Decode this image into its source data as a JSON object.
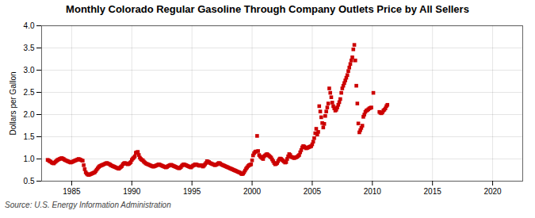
{
  "chart_data": {
    "type": "scatter",
    "title": "Monthly Colorado Regular Gasoline Through Company Outlets Price by All Sellers",
    "ylabel": "Dollars per Gallon",
    "source": "Source: U.S. Energy Information Administration",
    "color": "#cc0000",
    "marker": "square",
    "grid": true,
    "xlim": [
      1982.5,
      2022.5
    ],
    "ylim": [
      0.5,
      4.0
    ],
    "xticks": [
      1985,
      1990,
      1995,
      2000,
      2005,
      2010,
      2015,
      2020
    ],
    "yticks": [
      0.5,
      {
        "value": 1.0,
        "label": "1.0"
      },
      1.5,
      {
        "value": 2.0,
        "label": "2.0"
      },
      2.5,
      {
        "value": 3.0,
        "label": "3.0"
      },
      3.5,
      {
        "value": 4.0,
        "label": "4.0"
      }
    ],
    "x": [
      1983.0,
      1983.083,
      1983.167,
      1983.25,
      1983.333,
      1983.417,
      1983.5,
      1983.583,
      1983.667,
      1983.75,
      1983.833,
      1983.917,
      1984.0,
      1984.083,
      1984.167,
      1984.25,
      1984.333,
      1984.417,
      1984.5,
      1984.583,
      1984.667,
      1984.75,
      1984.833,
      1984.917,
      1985.0,
      1985.083,
      1985.167,
      1985.25,
      1985.333,
      1985.417,
      1985.5,
      1985.583,
      1985.667,
      1985.75,
      1985.833,
      1985.917,
      1986.0,
      1986.083,
      1986.167,
      1986.25,
      1986.333,
      1986.417,
      1986.5,
      1986.583,
      1986.667,
      1986.75,
      1986.833,
      1986.917,
      1987.0,
      1987.083,
      1987.167,
      1987.25,
      1987.333,
      1987.417,
      1987.5,
      1987.583,
      1987.667,
      1987.75,
      1987.833,
      1987.917,
      1988.0,
      1988.083,
      1988.167,
      1988.25,
      1988.333,
      1988.417,
      1988.5,
      1988.583,
      1988.667,
      1988.75,
      1988.833,
      1988.917,
      1989.0,
      1989.083,
      1989.167,
      1989.25,
      1989.333,
      1989.417,
      1989.5,
      1989.583,
      1989.667,
      1989.75,
      1989.833,
      1989.917,
      1990.0,
      1990.083,
      1990.167,
      1990.25,
      1990.333,
      1990.417,
      1990.5,
      1990.583,
      1990.667,
      1990.75,
      1990.833,
      1990.917,
      1991.0,
      1991.083,
      1991.167,
      1991.25,
      1991.333,
      1991.417,
      1991.5,
      1991.583,
      1991.667,
      1991.75,
      1991.833,
      1991.917,
      1992.0,
      1992.083,
      1992.167,
      1992.25,
      1992.333,
      1992.417,
      1992.5,
      1992.583,
      1992.667,
      1992.75,
      1992.833,
      1992.917,
      1993.0,
      1993.083,
      1993.167,
      1993.25,
      1993.333,
      1993.417,
      1993.5,
      1993.583,
      1993.667,
      1993.75,
      1993.833,
      1993.917,
      1994.0,
      1994.083,
      1994.167,
      1994.25,
      1994.333,
      1994.417,
      1994.5,
      1994.583,
      1994.667,
      1994.75,
      1994.833,
      1994.917,
      1995.0,
      1995.083,
      1995.167,
      1995.25,
      1995.333,
      1995.417,
      1995.5,
      1995.583,
      1995.667,
      1995.75,
      1995.833,
      1995.917,
      1996.0,
      1996.083,
      1996.167,
      1996.25,
      1996.333,
      1996.417,
      1996.5,
      1996.583,
      1996.667,
      1996.75,
      1996.833,
      1996.917,
      1997.0,
      1997.083,
      1997.167,
      1997.25,
      1997.333,
      1997.417,
      1997.5,
      1997.583,
      1997.667,
      1997.75,
      1997.833,
      1997.917,
      1998.0,
      1998.083,
      1998.167,
      1998.25,
      1998.333,
      1998.417,
      1998.5,
      1998.583,
      1998.667,
      1998.75,
      1998.833,
      1998.917,
      1999.0,
      1999.083,
      1999.167,
      1999.25,
      1999.333,
      1999.417,
      1999.5,
      1999.583,
      1999.667,
      1999.75,
      1999.833,
      1999.917,
      2000.0,
      2000.083,
      2000.167,
      2000.25,
      2000.333,
      2000.417,
      2000.5,
      2000.583,
      2000.667,
      2000.75,
      2000.833,
      2000.917,
      2001.0,
      2001.083,
      2001.167,
      2001.25,
      2001.333,
      2001.417,
      2001.5,
      2001.583,
      2001.667,
      2001.75,
      2001.833,
      2001.917,
      2002.0,
      2002.083,
      2002.167,
      2002.25,
      2002.333,
      2002.417,
      2002.5,
      2002.583,
      2002.667,
      2002.75,
      2002.833,
      2002.917,
      2003.0,
      2003.083,
      2003.167,
      2003.25,
      2003.333,
      2003.417,
      2003.5,
      2003.583,
      2003.667,
      2003.75,
      2003.833,
      2003.917,
      2004.0,
      2004.083,
      2004.167,
      2004.25,
      2004.333,
      2004.417,
      2004.5,
      2004.583,
      2004.667,
      2004.75,
      2004.833,
      2004.917,
      2005.0,
      2005.083,
      2005.167,
      2005.25,
      2005.333,
      2005.417,
      2005.5,
      2005.583,
      2005.667,
      2005.75,
      2005.833,
      2005.917,
      2006.0,
      2006.083,
      2006.167,
      2006.25,
      2006.333,
      2006.417,
      2006.5,
      2006.583,
      2006.667,
      2006.75,
      2006.833,
      2006.917,
      2007.0,
      2007.083,
      2007.167,
      2007.25,
      2007.333,
      2007.417,
      2007.5,
      2007.583,
      2007.667,
      2007.75,
      2007.833,
      2007.917,
      2008.0,
      2008.083,
      2008.167,
      2008.25,
      2008.333,
      2008.417,
      2008.5,
      2008.583,
      2008.667,
      2008.75,
      2008.833,
      2008.917,
      2009.0,
      2009.083,
      2009.167,
      2009.25,
      2009.333,
      2009.417,
      2009.5,
      2009.583,
      2009.667,
      2009.75,
      2009.833,
      2009.917,
      2010.083,
      2010.583,
      2010.667,
      2010.75,
      2010.833,
      2010.917,
      2011.0,
      2011.083,
      2011.167,
      2011.25
    ],
    "values": [
      0.979,
      0.969,
      0.949,
      0.939,
      0.919,
      0.909,
      0.899,
      0.919,
      0.939,
      0.959,
      0.979,
      0.989,
      0.999,
      1.009,
      1.019,
      1.009,
      0.999,
      0.979,
      0.969,
      0.959,
      0.949,
      0.939,
      0.929,
      0.919,
      0.929,
      0.939,
      0.949,
      0.959,
      0.969,
      0.979,
      0.989,
      0.999,
      0.989,
      0.979,
      0.969,
      0.959,
      0.859,
      0.769,
      0.699,
      0.669,
      0.649,
      0.639,
      0.649,
      0.659,
      0.669,
      0.679,
      0.689,
      0.699,
      0.729,
      0.759,
      0.789,
      0.819,
      0.839,
      0.849,
      0.859,
      0.869,
      0.879,
      0.889,
      0.899,
      0.909,
      0.899,
      0.889,
      0.879,
      0.859,
      0.849,
      0.839,
      0.829,
      0.819,
      0.809,
      0.799,
      0.789,
      0.779,
      0.799,
      0.819,
      0.839,
      0.879,
      0.899,
      0.909,
      0.899,
      0.889,
      0.879,
      0.889,
      0.909,
      0.929,
      0.979,
      1.009,
      1.029,
      1.059,
      1.139,
      1.149,
      1.159,
      1.089,
      1.029,
      0.999,
      0.979,
      0.969,
      0.939,
      0.919,
      0.899,
      0.889,
      0.879,
      0.869,
      0.859,
      0.849,
      0.839,
      0.829,
      0.829,
      0.839,
      0.849,
      0.859,
      0.869,
      0.879,
      0.869,
      0.859,
      0.849,
      0.839,
      0.829,
      0.819,
      0.809,
      0.819,
      0.839,
      0.849,
      0.859,
      0.869,
      0.859,
      0.849,
      0.839,
      0.829,
      0.819,
      0.809,
      0.799,
      0.789,
      0.799,
      0.819,
      0.849,
      0.869,
      0.879,
      0.869,
      0.859,
      0.849,
      0.839,
      0.829,
      0.819,
      0.809,
      0.829,
      0.849,
      0.859,
      0.879,
      0.879,
      0.869,
      0.859,
      0.849,
      0.849,
      0.859,
      0.849,
      0.829,
      0.849,
      0.879,
      0.909,
      0.949,
      0.939,
      0.929,
      0.909,
      0.899,
      0.889,
      0.879,
      0.869,
      0.859,
      0.869,
      0.879,
      0.899,
      0.909,
      0.899,
      0.879,
      0.869,
      0.859,
      0.849,
      0.839,
      0.829,
      0.819,
      0.809,
      0.799,
      0.789,
      0.779,
      0.769,
      0.759,
      0.749,
      0.739,
      0.729,
      0.719,
      0.709,
      0.699,
      0.689,
      0.669,
      0.659,
      0.669,
      0.699,
      0.739,
      0.779,
      0.809,
      0.839,
      0.859,
      0.869,
      0.879,
      0.969,
      1.079,
      1.129,
      1.159,
      1.169,
      1.519,
      1.179,
      1.089,
      1.059,
      1.039,
      1.019,
      0.999,
      1.059,
      1.079,
      1.099,
      1.109,
      1.089,
      1.069,
      1.049,
      1.029,
      0.989,
      0.949,
      0.909,
      0.879,
      0.889,
      0.909,
      0.949,
      0.989,
      1.009,
      0.999,
      0.979,
      0.959,
      0.939,
      0.919,
      0.929,
      0.999,
      1.059,
      1.109,
      1.089,
      1.049,
      1.039,
      1.029,
      1.019,
      1.029,
      1.039,
      1.049,
      1.069,
      1.089,
      1.149,
      1.199,
      1.259,
      1.289,
      1.279,
      1.259,
      1.239,
      1.249,
      1.259,
      1.269,
      1.279,
      1.289,
      1.329,
      1.389,
      1.469,
      1.579,
      1.679,
      1.549,
      1.609,
      2.189,
      2.069,
      1.939,
      1.809,
      1.709,
      1.789,
      1.969,
      2.069,
      2.159,
      2.249,
      2.589,
      2.489,
      2.389,
      2.269,
      2.189,
      2.139,
      2.089,
      2.109,
      2.159,
      2.219,
      2.279,
      2.349,
      2.489,
      2.589,
      2.649,
      2.709,
      2.769,
      2.829,
      2.889,
      2.979,
      3.059,
      3.139,
      3.219,
      3.289,
      3.469,
      3.569,
      3.219,
      2.649,
      2.249,
      1.799,
      1.599,
      1.649,
      1.699,
      1.749,
      1.949,
      1.999,
      2.059,
      2.089,
      2.099,
      2.119,
      2.139,
      2.149,
      2.159,
      2.489,
      2.059,
      2.039,
      2.029,
      2.049,
      2.089,
      2.109,
      2.139,
      2.189,
      2.219
    ]
  }
}
